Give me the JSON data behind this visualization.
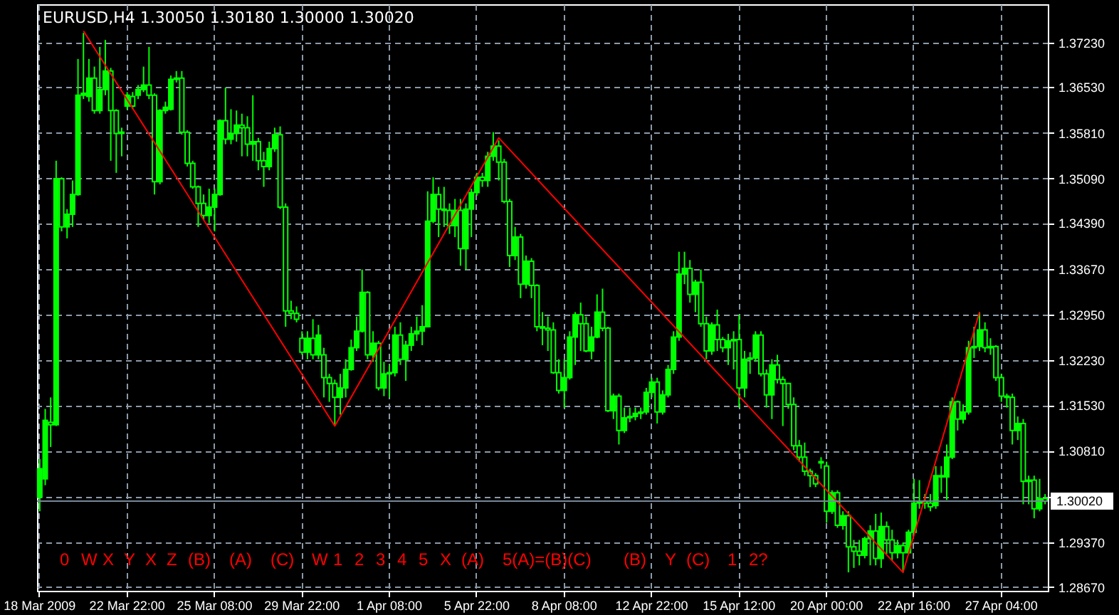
{
  "chart_data": {
    "type": "candlestick",
    "title": "EURUSD,H4 1.30050 1.30180 1.30000 1.30020",
    "color": "#00ff00",
    "grid": true,
    "categories": [
      "18 Mar 2009",
      null,
      null,
      null,
      null,
      null,
      null,
      null,
      null,
      null,
      null,
      null,
      null,
      null,
      null,
      null,
      "22 Mar 22:00",
      null,
      null,
      null,
      null,
      null,
      null,
      null,
      null,
      null,
      null,
      null,
      null,
      null,
      null,
      null,
      "25 Mar 08:00",
      null,
      null,
      null,
      null,
      null,
      null,
      null,
      null,
      null,
      null,
      null,
      null,
      null,
      null,
      null,
      "29 Mar 22:00",
      null,
      null,
      null,
      null,
      null,
      null,
      null,
      null,
      null,
      null,
      null,
      null,
      null,
      null,
      null,
      "1 Apr 08:00",
      null,
      null,
      null,
      null,
      null,
      null,
      null,
      null,
      null,
      null,
      null,
      null,
      null,
      null,
      null,
      "5 Apr 22:00",
      null,
      null,
      null,
      null,
      null,
      null,
      null,
      null,
      null,
      null,
      null,
      null,
      null,
      null,
      null,
      "8 Apr 08:00",
      null,
      null,
      null,
      null,
      null,
      null,
      null,
      null,
      null,
      null,
      null,
      null,
      null,
      null,
      null,
      "12 Apr 22:00",
      null,
      null,
      null,
      null,
      null,
      null,
      null,
      null,
      null,
      null,
      null,
      null,
      null,
      null,
      null,
      "15 Apr 12:00",
      null,
      null,
      null,
      null,
      null,
      null,
      null,
      null,
      null,
      null,
      null,
      null,
      null,
      null,
      null,
      "20 Apr 00:00",
      null,
      null,
      null,
      null,
      null,
      null,
      null,
      null,
      null,
      null,
      null,
      null,
      null,
      null,
      null,
      "22 Apr 16:00",
      null,
      null,
      null,
      null,
      null,
      null,
      null,
      null,
      null,
      null,
      null,
      null,
      null,
      null,
      null,
      "27 Apr 04:00",
      null,
      null,
      null,
      null,
      null,
      null,
      null,
      null
    ],
    "ylim": [
      1.2861,
      1.3783
    ],
    "yticks": [
      {
        "value": 1.3723,
        "label": "1.37230"
      },
      {
        "value": 1.3653,
        "label": "1.36530"
      },
      {
        "value": 1.3581,
        "label": "1.35810"
      },
      {
        "value": 1.3509,
        "label": "1.35090"
      },
      {
        "value": 1.3439,
        "label": "1.34390"
      },
      {
        "value": 1.3367,
        "label": "1.33670"
      },
      {
        "value": 1.3295,
        "label": "1.32950"
      },
      {
        "value": 1.3223,
        "label": "1.32230"
      },
      {
        "value": 1.3153,
        "label": "1.31530"
      },
      {
        "value": 1.3081,
        "label": "1.30810"
      },
      {
        "value": 1.3009,
        "label": null
      },
      {
        "value": 1.2937,
        "label": "1.29370"
      },
      {
        "value": 1.2867,
        "label": "1.28670"
      }
    ],
    "ref_lines": [
      {
        "axis": "y",
        "value": 1.3002,
        "label": "1.30020",
        "color": "#778899"
      }
    ],
    "ohlc": [
      [
        1.3008,
        1.3068,
        1.2986,
        1.3053
      ],
      [
        1.3037,
        1.3147,
        1.3027,
        1.3129
      ],
      [
        1.3126,
        1.3165,
        1.3087,
        1.3122
      ],
      [
        1.3122,
        1.3537,
        1.312,
        1.3509
      ],
      [
        1.3509,
        1.3511,
        1.3426,
        1.3433
      ],
      [
        1.3433,
        1.3461,
        1.3415,
        1.3453
      ],
      [
        1.3453,
        1.3506,
        1.3433,
        1.3484
      ],
      [
        1.3484,
        1.3697,
        1.3482,
        1.364
      ],
      [
        1.364,
        1.3738,
        1.3634,
        1.3643
      ],
      [
        1.3638,
        1.3697,
        1.363,
        1.3667
      ],
      [
        1.3667,
        1.3685,
        1.3611,
        1.3616
      ],
      [
        1.3616,
        1.3716,
        1.3611,
        1.3649
      ],
      [
        1.3649,
        1.3727,
        1.364,
        1.3678
      ],
      [
        1.3678,
        1.3683,
        1.3537,
        1.3616
      ],
      [
        1.3616,
        1.3618,
        1.3518,
        1.358
      ],
      [
        1.358,
        1.3589,
        1.3544,
        1.3582
      ],
      [
        1.3623,
        1.3645,
        1.3618,
        1.364
      ],
      [
        1.3638,
        1.3645,
        1.3618,
        1.3623
      ],
      [
        1.364,
        1.3656,
        1.3634,
        1.3649
      ],
      [
        1.3649,
        1.3685,
        1.3645,
        1.3656
      ],
      [
        1.3656,
        1.3716,
        1.3634,
        1.364
      ],
      [
        1.364,
        1.3643,
        1.3484,
        1.3504
      ],
      [
        1.3504,
        1.3618,
        1.35,
        1.3616
      ],
      [
        1.3616,
        1.363,
        1.3611,
        1.3621
      ],
      [
        1.3618,
        1.3671,
        1.3616,
        1.3665
      ],
      [
        1.3665,
        1.3678,
        1.366,
        1.3667
      ],
      [
        1.3667,
        1.3678,
        1.3578,
        1.3582
      ],
      [
        1.3582,
        1.3585,
        1.3528,
        1.3533
      ],
      [
        1.3533,
        1.3537,
        1.3493,
        1.3496
      ],
      [
        1.3496,
        1.3498,
        1.3433,
        1.347
      ],
      [
        1.347,
        1.3484,
        1.3444,
        1.3451
      ],
      [
        1.3451,
        1.3493,
        1.3439,
        1.3464
      ],
      [
        1.3464,
        1.3493,
        1.3426,
        1.3484
      ],
      [
        1.3484,
        1.3602,
        1.3482,
        1.36
      ],
      [
        1.36,
        1.3652,
        1.3563,
        1.3571
      ],
      [
        1.3571,
        1.3618,
        1.3563,
        1.358
      ],
      [
        1.358,
        1.3616,
        1.3567,
        1.3593
      ],
      [
        1.3593,
        1.3611,
        1.3544,
        1.3589
      ],
      [
        1.3589,
        1.3607,
        1.3544,
        1.3563
      ],
      [
        1.3563,
        1.364,
        1.3537,
        1.3567
      ],
      [
        1.3567,
        1.3573,
        1.3522,
        1.3537
      ],
      [
        1.3537,
        1.3551,
        1.3496,
        1.3528
      ],
      [
        1.3528,
        1.3567,
        1.3522,
        1.3556
      ],
      [
        1.3556,
        1.3589,
        1.3551,
        1.3578
      ],
      [
        1.3578,
        1.3591,
        1.3461,
        1.3464
      ],
      [
        1.3464,
        1.347,
        1.3276,
        1.3301
      ],
      [
        1.3301,
        1.3317,
        1.3288,
        1.3297
      ],
      [
        1.3297,
        1.3308,
        1.3283,
        1.3288
      ],
      [
        1.3258,
        1.3269,
        1.3232,
        1.3236
      ],
      [
        1.3236,
        1.3269,
        1.3225,
        1.3258
      ],
      [
        1.3258,
        1.3288,
        1.3225,
        1.3232
      ],
      [
        1.3232,
        1.3279,
        1.3225,
        1.3263
      ],
      [
        1.3232,
        1.3243,
        1.3165,
        1.3196
      ],
      [
        1.3196,
        1.3202,
        1.3158,
        1.3187
      ],
      [
        1.3187,
        1.3193,
        1.312,
        1.3165
      ],
      [
        1.3165,
        1.3202,
        1.3138,
        1.318
      ],
      [
        1.318,
        1.3225,
        1.3165,
        1.3209
      ],
      [
        1.3209,
        1.3256,
        1.3207,
        1.3243
      ],
      [
        1.3243,
        1.3292,
        1.3238,
        1.3269
      ],
      [
        1.3269,
        1.3366,
        1.3267,
        1.333
      ],
      [
        1.333,
        1.3332,
        1.3225,
        1.3232
      ],
      [
        1.3232,
        1.3269,
        1.3221,
        1.325
      ],
      [
        1.325,
        1.3254,
        1.3176,
        1.318
      ],
      [
        1.318,
        1.3221,
        1.3167,
        1.3202
      ],
      [
        1.3202,
        1.3216,
        1.3165,
        1.3204
      ],
      [
        1.3204,
        1.3276,
        1.3198,
        1.3263
      ],
      [
        1.3263,
        1.3283,
        1.3216,
        1.3225
      ],
      [
        1.3225,
        1.3254,
        1.3191,
        1.3247
      ],
      [
        1.3247,
        1.3276,
        1.3238,
        1.3265
      ],
      [
        1.3265,
        1.3292,
        1.3254,
        1.3269
      ],
      [
        1.3269,
        1.331,
        1.3247,
        1.3276
      ],
      [
        1.3276,
        1.3489,
        1.3276,
        1.3442
      ],
      [
        1.3442,
        1.3511,
        1.3439,
        1.3484
      ],
      [
        1.3484,
        1.3496,
        1.3417,
        1.3461
      ],
      [
        1.3461,
        1.3496,
        1.3433,
        1.3459
      ],
      [
        1.3459,
        1.347,
        1.3422,
        1.3435
      ],
      [
        1.3435,
        1.3477,
        1.3417,
        1.3459
      ],
      [
        1.3459,
        1.3477,
        1.3372,
        1.3399
      ],
      [
        1.3399,
        1.347,
        1.3366,
        1.3461
      ],
      [
        1.3461,
        1.3493,
        1.3417,
        1.3487
      ],
      [
        1.3487,
        1.3518,
        1.3482,
        1.3511
      ],
      [
        1.3511,
        1.3518,
        1.3496,
        1.3506
      ],
      [
        1.3506,
        1.3551,
        1.3496,
        1.3544
      ],
      [
        1.3544,
        1.3582,
        1.3537,
        1.356
      ],
      [
        1.356,
        1.3569,
        1.3506,
        1.3535
      ],
      [
        1.3535,
        1.354,
        1.347,
        1.3473
      ],
      [
        1.3473,
        1.3477,
        1.337,
        1.3388
      ],
      [
        1.3388,
        1.3433,
        1.3381,
        1.3417
      ],
      [
        1.3417,
        1.3422,
        1.3321,
        1.3343
      ],
      [
        1.3343,
        1.3388,
        1.3336,
        1.3379
      ],
      [
        1.3379,
        1.3384,
        1.3321,
        1.3341
      ],
      [
        1.3341,
        1.3343,
        1.3269,
        1.3276
      ],
      [
        1.3276,
        1.3299,
        1.3247,
        1.3274
      ],
      [
        1.3274,
        1.3292,
        1.3238,
        1.3271
      ],
      [
        1.3271,
        1.3283,
        1.3202,
        1.3204
      ],
      [
        1.3204,
        1.3225,
        1.3171,
        1.3176
      ],
      [
        1.3176,
        1.3225,
        1.3149,
        1.3196
      ],
      [
        1.3196,
        1.3269,
        1.3193,
        1.326
      ],
      [
        1.326,
        1.3299,
        1.3216,
        1.3295
      ],
      [
        1.3295,
        1.3314,
        1.3238,
        1.3281
      ],
      [
        1.3281,
        1.3292,
        1.3236,
        1.3238
      ],
      [
        1.3238,
        1.3276,
        1.3225,
        1.326
      ],
      [
        1.326,
        1.3327,
        1.3258,
        1.3299
      ],
      [
        1.3299,
        1.3336,
        1.3269,
        1.3274
      ],
      [
        1.3274,
        1.3276,
        1.3142,
        1.3144
      ],
      [
        1.3144,
        1.3171,
        1.3131,
        1.3167
      ],
      [
        1.3167,
        1.3171,
        1.3091,
        1.3113
      ],
      [
        1.3113,
        1.3149,
        1.3109,
        1.3133
      ],
      [
        1.3133,
        1.3149,
        1.3126,
        1.3135
      ],
      [
        1.3135,
        1.3149,
        1.3129,
        1.314
      ],
      [
        1.314,
        1.3149,
        1.3131,
        1.3142
      ],
      [
        1.3142,
        1.318,
        1.3138,
        1.3173
      ],
      [
        1.3173,
        1.3196,
        1.3165,
        1.3189
      ],
      [
        1.3189,
        1.3196,
        1.3124,
        1.3142
      ],
      [
        1.3142,
        1.3176,
        1.3138,
        1.3169
      ],
      [
        1.3169,
        1.3216,
        1.3165,
        1.3209
      ],
      [
        1.3209,
        1.3269,
        1.3202,
        1.326
      ],
      [
        1.326,
        1.3394,
        1.3254,
        1.3359
      ],
      [
        1.3359,
        1.3394,
        1.3343,
        1.3368
      ],
      [
        1.3368,
        1.3381,
        1.3314,
        1.3327
      ],
      [
        1.3327,
        1.335,
        1.3299,
        1.3346
      ],
      [
        1.3346,
        1.3366,
        1.3276,
        1.3281
      ],
      [
        1.3281,
        1.3292,
        1.3225,
        1.3238
      ],
      [
        1.3238,
        1.3283,
        1.3232,
        1.3279
      ],
      [
        1.3279,
        1.3303,
        1.3238,
        1.3256
      ],
      [
        1.3256,
        1.326,
        1.3236,
        1.3243
      ],
      [
        1.3243,
        1.3265,
        1.3216,
        1.3254
      ],
      [
        1.3254,
        1.3269,
        1.3209,
        1.3256
      ],
      [
        1.3256,
        1.3295,
        1.3149,
        1.318
      ],
      [
        1.318,
        1.3238,
        1.3165,
        1.3225
      ],
      [
        1.3225,
        1.3236,
        1.3202,
        1.3227
      ],
      [
        1.3227,
        1.3269,
        1.3221,
        1.3263
      ],
      [
        1.3263,
        1.3269,
        1.3198,
        1.3202
      ],
      [
        1.3202,
        1.3209,
        1.3149,
        1.3169
      ],
      [
        1.3169,
        1.3225,
        1.3131,
        1.3216
      ],
      [
        1.3216,
        1.3232,
        1.3187,
        1.3193
      ],
      [
        1.3193,
        1.3198,
        1.312,
        1.3187
      ],
      [
        1.3187,
        1.3187,
        1.3147,
        1.3154
      ],
      [
        1.3154,
        1.3165,
        1.3082,
        1.3089
      ],
      [
        1.3089,
        1.3098,
        1.3064,
        1.3071
      ],
      [
        1.3071,
        1.3094,
        1.3042,
        1.3049
      ],
      [
        1.3049,
        1.3053,
        1.3024,
        1.3042
      ],
      [
        1.3042,
        1.3046,
        1.3024,
        1.3029
      ],
      [
        1.3062,
        1.3071,
        1.3053,
        1.3064
      ],
      [
        1.3057,
        1.3064,
        1.2968,
        1.2986
      ],
      [
        1.2986,
        1.3019,
        1.2982,
        1.3015
      ],
      [
        1.3015,
        1.3019,
        1.296,
        1.2964
      ],
      [
        1.2964,
        1.2986,
        1.2957,
        1.2979
      ],
      [
        1.2979,
        1.2986,
        1.289,
        1.293
      ],
      [
        1.293,
        1.2941,
        1.2897,
        1.2923
      ],
      [
        1.2923,
        1.2941,
        1.2901,
        1.2917
      ],
      [
        1.2917,
        1.2946,
        1.2912,
        1.2943
      ],
      [
        1.2943,
        1.2964,
        1.2901,
        1.2955
      ],
      [
        1.2955,
        1.2982,
        1.2901,
        1.2912
      ],
      [
        1.2912,
        1.2984,
        1.2897,
        1.2962
      ],
      [
        1.2962,
        1.297,
        1.2919,
        1.2941
      ],
      [
        1.2941,
        1.2957,
        1.2908,
        1.2921
      ],
      [
        1.2921,
        1.2941,
        1.2912,
        1.2932
      ],
      [
        1.2932,
        1.2937,
        1.289,
        1.2921
      ],
      [
        1.2921,
        1.2957,
        1.2919,
        1.2953
      ],
      [
        1.2953,
        1.3037,
        1.2948,
        1.2999
      ],
      [
        1.2999,
        1.3035,
        1.299,
        1.3002
      ],
      [
        1.3002,
        1.3013,
        1.299,
        1.2999
      ],
      [
        1.2999,
        1.3013,
        1.2986,
        1.2993
      ],
      [
        1.2995,
        1.3057,
        1.299,
        1.3042
      ],
      [
        1.3042,
        1.3057,
        1.3015,
        1.304
      ],
      [
        1.304,
        1.3091,
        1.3004,
        1.3071
      ],
      [
        1.3071,
        1.3165,
        1.3068,
        1.3158
      ],
      [
        1.3158,
        1.316,
        1.3113,
        1.3131
      ],
      [
        1.3131,
        1.3154,
        1.3124,
        1.3142
      ],
      [
        1.3142,
        1.3254,
        1.3138,
        1.3243
      ],
      [
        1.3243,
        1.3276,
        1.3227,
        1.3245
      ],
      [
        1.3245,
        1.3299,
        1.3238,
        1.3271
      ],
      [
        1.3271,
        1.3283,
        1.3236,
        1.3243
      ],
      [
        1.3243,
        1.3258,
        1.3232,
        1.3245
      ],
      [
        1.3245,
        1.3247,
        1.3191,
        1.3196
      ],
      [
        1.3196,
        1.3202,
        1.3158,
        1.3167
      ],
      [
        1.3167,
        1.3171,
        1.3149,
        1.3165
      ],
      [
        1.3165,
        1.3171,
        1.3091,
        1.3113
      ],
      [
        1.3113,
        1.3135,
        1.3098,
        1.3124
      ],
      [
        1.3124,
        1.3131,
        1.2997,
        1.3033
      ],
      [
        1.3033,
        1.3042,
        1.2997,
        1.3035
      ],
      [
        1.3035,
        1.3042,
        1.2975,
        1.299
      ],
      [
        1.299,
        1.3037,
        1.2986,
        1.3006
      ],
      [
        1.3006,
        1.3013,
        1.2997,
        1.3002
      ]
    ],
    "series": [
      {
        "type": "line",
        "color": "#ff0000",
        "values": [
          null,
          null,
          null,
          null,
          null,
          null,
          null,
          null,
          1.3741,
          null,
          null,
          null,
          null,
          null,
          null,
          null,
          null,
          null,
          null,
          null,
          null,
          null,
          null,
          null,
          null,
          null,
          null,
          null,
          null,
          null,
          null,
          null,
          null,
          null,
          null,
          null,
          null,
          null,
          null,
          null,
          null,
          null,
          null,
          null,
          null,
          null,
          null,
          null,
          null,
          null,
          null,
          null,
          null,
          null,
          1.312,
          null,
          null,
          null,
          null,
          null,
          null,
          null,
          null,
          null,
          null,
          null,
          null,
          null,
          null,
          null,
          null,
          null,
          null,
          null,
          null,
          null,
          null,
          null,
          null,
          null,
          null,
          null,
          null,
          null,
          1.3573,
          null,
          null,
          null,
          null,
          null,
          null,
          null,
          null,
          null,
          null,
          null,
          null,
          null,
          null,
          null,
          null,
          null,
          null,
          null,
          null,
          null,
          null,
          null,
          null,
          null,
          null,
          null,
          null,
          null,
          null,
          null,
          null,
          null,
          null,
          null,
          null,
          null,
          null,
          null,
          null,
          null,
          null,
          null,
          null,
          null,
          null,
          null,
          null,
          null,
          null,
          null,
          null,
          null,
          null,
          null,
          null,
          null,
          null,
          null,
          null,
          null,
          null,
          null,
          null,
          null,
          null,
          null,
          null,
          null,
          null,
          null,
          null,
          null,
          1.289,
          null,
          null,
          null,
          null,
          null,
          null,
          null,
          null,
          null,
          null,
          null,
          null,
          null,
          1.3299,
          null,
          null,
          null,
          null,
          null,
          null,
          null,
          null,
          null,
          null,
          null,
          null
        ]
      }
    ],
    "annotations": [
      "0",
      "W",
      "X",
      "Y",
      "X",
      "Z",
      "(B)",
      "(A)",
      "(C)",
      "W",
      "1",
      "2",
      "3",
      "4",
      "5",
      "X",
      "(A)",
      "5(A)=(B)(C)",
      "(B)",
      "Y",
      "(C)",
      "1",
      "2?"
    ]
  }
}
